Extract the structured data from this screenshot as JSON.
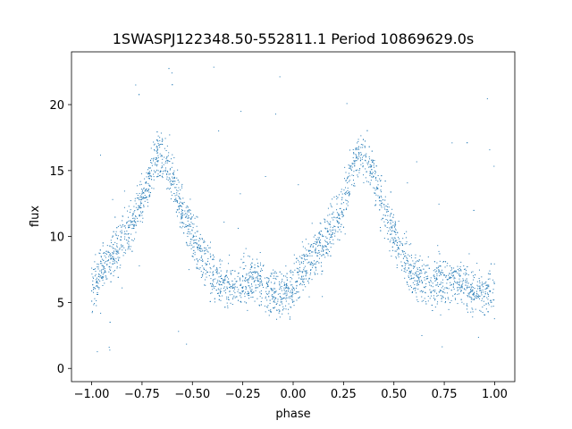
{
  "chart_data": {
    "type": "scatter",
    "title": "1SWASPJ122348.50-552811.1 Period 10869629.0s",
    "xlabel": "phase",
    "ylabel": "flux",
    "xlim": [
      -1.1,
      1.1
    ],
    "ylim": [
      -1.0,
      24.0
    ],
    "xticks": [
      -1.0,
      -0.75,
      -0.5,
      -0.25,
      0.0,
      0.25,
      0.5,
      0.75,
      1.0
    ],
    "xtick_labels": [
      "−1.00",
      "−0.75",
      "−0.50",
      "−0.25",
      "0.00",
      "0.25",
      "0.50",
      "0.75",
      "1.00"
    ],
    "yticks": [
      0,
      5,
      10,
      15,
      20
    ],
    "ytick_labels": [
      "0",
      "5",
      "10",
      "15",
      "20"
    ],
    "grid": false,
    "marker_color": "#1f77b4",
    "series": [
      {
        "description": "folded light curve (approximate trend, repeated for phase -1..0 and 0..1)",
        "x": [
          -1.0,
          -0.95,
          -0.9,
          -0.85,
          -0.8,
          -0.75,
          -0.7,
          -0.68,
          -0.65,
          -0.6,
          -0.55,
          -0.5,
          -0.45,
          -0.4,
          -0.35,
          -0.3,
          -0.25,
          -0.2,
          -0.15,
          -0.1,
          -0.05,
          0.0,
          0.05,
          0.1,
          0.15,
          0.2,
          0.25,
          0.3,
          0.32,
          0.35,
          0.4,
          0.45,
          0.5,
          0.55,
          0.6,
          0.65,
          0.7,
          0.75,
          0.8,
          0.85,
          0.9,
          0.95,
          1.0
        ],
        "y": [
          6.0,
          7.5,
          8.5,
          9.5,
          11.0,
          12.5,
          15.0,
          16.2,
          16.0,
          14.5,
          12.0,
          10.0,
          8.5,
          7.0,
          6.5,
          6.3,
          6.5,
          6.8,
          6.2,
          5.8,
          5.6,
          6.0,
          7.5,
          8.5,
          9.5,
          11.0,
          12.5,
          15.0,
          16.2,
          16.0,
          14.5,
          12.0,
          10.0,
          8.5,
          7.0,
          6.5,
          6.3,
          6.5,
          6.8,
          6.2,
          5.8,
          5.6,
          6.0
        ]
      }
    ]
  }
}
